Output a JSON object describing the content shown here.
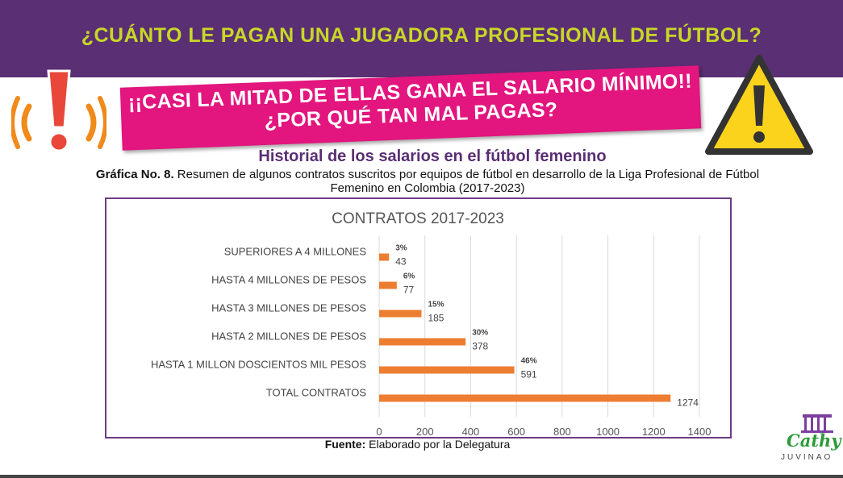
{
  "header": {
    "title": "¿CUÁNTO LE PAGAN UNA JUGADORA PROFESIONAL DE FÚTBOL?"
  },
  "banner": {
    "line1": "¡¡CASI LA MITAD DE ELLAS GANA EL SALARIO MÍNIMO!!",
    "line2": "¿POR QUÉ TAN MAL PAGAS?"
  },
  "subtitle": "Historial de los salarios en el fútbol femenino",
  "caption": {
    "label": "Gráfica No. 8.",
    "text": " Resumen de algunos contratos suscritos por equipos de fútbol en desarrollo de la Liga Profesional de Fútbol Femenino en Colombia (2017-2023)"
  },
  "source": {
    "label": "Fuente:",
    "text": " Elaborado por la Delegatura"
  },
  "logo": {
    "name": "Cathy",
    "sub": "JUVINAO"
  },
  "colors": {
    "purple": "#5a2f73",
    "lime": "#c8d826",
    "pink": "#e3157e",
    "bar": "#ed7d31",
    "green": "#2f9a3a"
  },
  "icons": {
    "left": "alert-exclamation-icon",
    "right": "warning-triangle-icon"
  },
  "chart_data": {
    "type": "bar",
    "orientation": "horizontal",
    "title": "CONTRATOS 2017-2023",
    "categories": [
      "SUPERIORES A 4 MILLONES",
      "HASTA 4 MILLONES DE PESOS",
      "HASTA 3 MILLONES DE PESOS",
      "HASTA 2 MILLONES DE PESOS",
      "HASTA 1 MILLON DOSCIENTOS MIL PESOS",
      "TOTAL CONTRATOS"
    ],
    "values": [
      43,
      77,
      185,
      378,
      591,
      1274
    ],
    "percent_labels": [
      "3%",
      "6%",
      "15%",
      "30%",
      "46%",
      ""
    ],
    "xlim": [
      0,
      1400
    ],
    "xticks": [
      0,
      200,
      400,
      600,
      800,
      1000,
      1200,
      1400
    ],
    "grid": true
  }
}
